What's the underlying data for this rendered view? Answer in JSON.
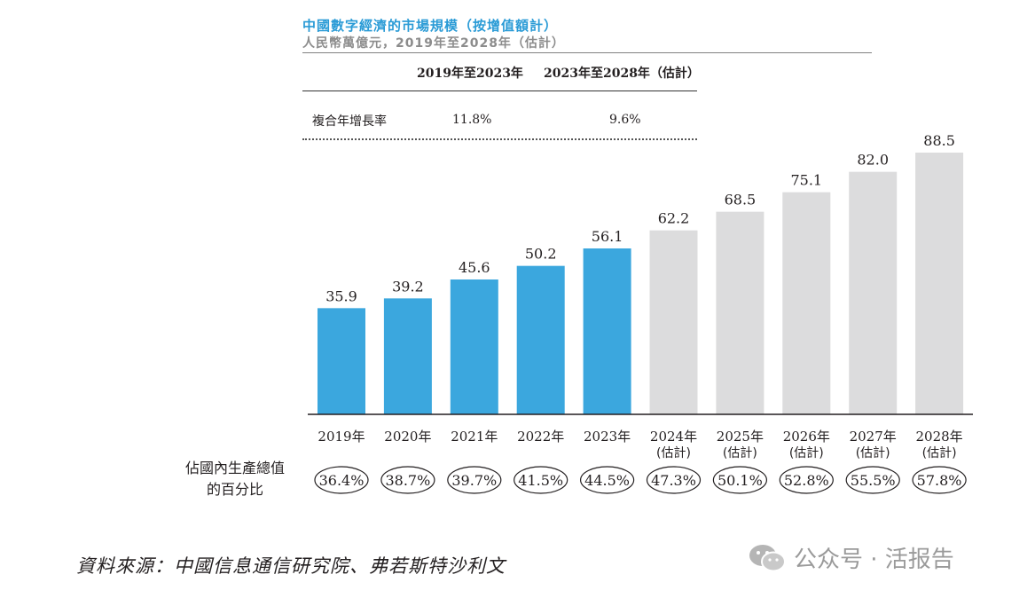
{
  "title": "中國數字經濟的市場規模（按增值額計）",
  "subtitle": "人民幣萬億元，2019年至2028年（估計）",
  "cagr": {
    "period_1": "2019年至2023年",
    "period_2": "2023年至2028年（估計）",
    "row_label": "複合年增長率",
    "value_1": "11.8%",
    "value_2": "9.6%"
  },
  "gdp_share_label_line1": "佔國內生產總值",
  "gdp_share_label_line2": "的百分比",
  "source": "資料來源：中國信息通信研究院、弗若斯特沙利文",
  "watermark": "公众号 · 活报告",
  "colors": {
    "actual": "#3ba7de",
    "forecast": "#dcdcdd",
    "axis": "#231f20"
  },
  "chart_data": {
    "type": "bar",
    "categories": [
      "2019年",
      "2020年",
      "2021年",
      "2022年",
      "2023年",
      "2024年",
      "2025年",
      "2026年",
      "2027年",
      "2028年"
    ],
    "category_sublabels": [
      "",
      "",
      "",
      "",
      "",
      "(估計)",
      "(估計)",
      "(估計)",
      "(估計)",
      "(估計)"
    ],
    "values": [
      35.9,
      39.2,
      45.6,
      50.2,
      56.1,
      62.2,
      68.5,
      75.1,
      82.0,
      88.5
    ],
    "value_labels": [
      "35.9",
      "39.2",
      "45.6",
      "50.2",
      "56.1",
      "62.2",
      "68.5",
      "75.1",
      "82.0",
      "88.5"
    ],
    "forecast": [
      false,
      false,
      false,
      false,
      false,
      true,
      true,
      true,
      true,
      true
    ],
    "gdp_share": [
      "36.4%",
      "38.7%",
      "39.7%",
      "41.5%",
      "44.5%",
      "47.3%",
      "50.1%",
      "52.8%",
      "55.5%",
      "57.8%"
    ],
    "ylim": [
      0,
      88.5
    ],
    "grid": false,
    "legend": "none"
  }
}
